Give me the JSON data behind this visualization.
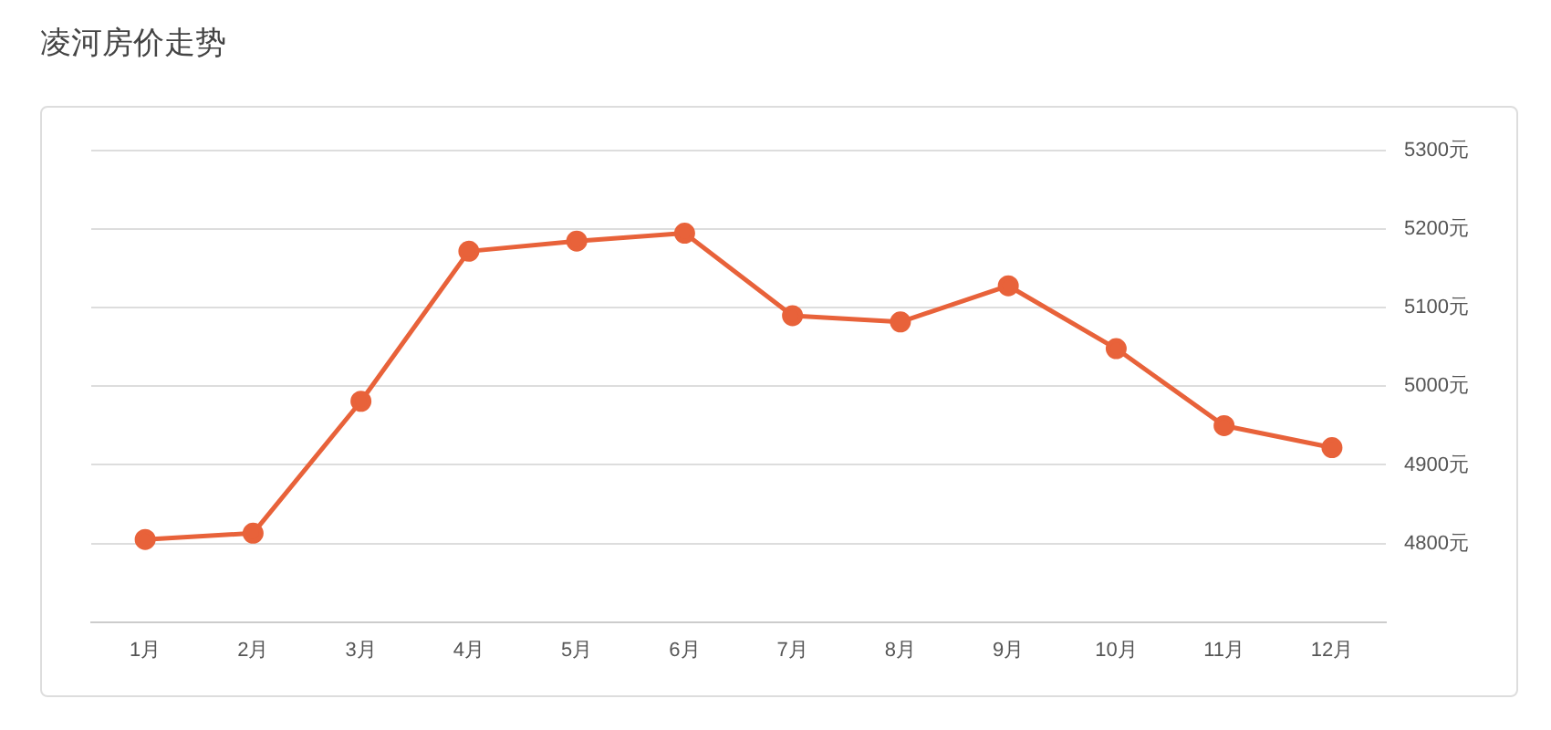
{
  "chart_data": {
    "type": "line",
    "title": "凌河房价走势",
    "categories": [
      "1月",
      "2月",
      "3月",
      "4月",
      "5月",
      "6月",
      "7月",
      "8月",
      "9月",
      "10月",
      "11月",
      "12月"
    ],
    "series": [
      {
        "color": "#e8623a",
        "values": [
          4805,
          4813,
          4981,
          5172,
          5185,
          5195,
          5090,
          5082,
          5128,
          5048,
          4950,
          4922
        ]
      }
    ],
    "ylim": [
      4700,
      5300
    ],
    "yticks": [
      {
        "value": 4800,
        "label": "4800元"
      },
      {
        "value": 4900,
        "label": "4900元"
      },
      {
        "value": 5000,
        "label": "5000元"
      },
      {
        "value": 5100,
        "label": "5100元"
      },
      {
        "value": 5200,
        "label": "5200元"
      },
      {
        "value": 5300,
        "label": "5300元"
      }
    ],
    "grid": "y",
    "marker": "circle",
    "line_style": "solid",
    "legend": false
  }
}
